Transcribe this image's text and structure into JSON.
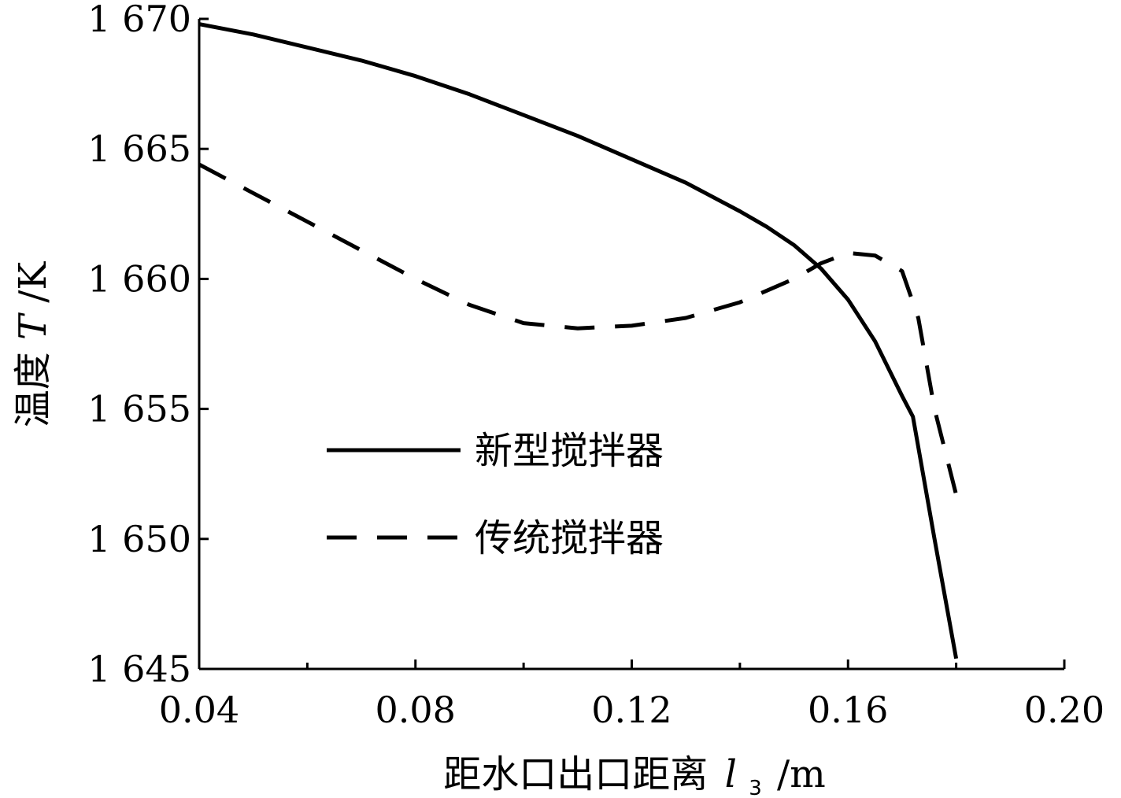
{
  "chart_data": {
    "type": "line",
    "xlabel_prefix": "距水口出口距离",
    "xlabel_var": "l",
    "xlabel_sub": "3",
    "xlabel_unit": "/m",
    "ylabel_prefix": "温度",
    "ylabel_var": "T",
    "ylabel_unit": "/K",
    "xlim": [
      0.04,
      0.2
    ],
    "ylim": [
      1645,
      1670
    ],
    "x_ticks": [
      0.04,
      0.08,
      0.12,
      0.16,
      0.2
    ],
    "x_tick_labels": [
      "0.04",
      "0.08",
      "0.12",
      "0.16",
      "0.20"
    ],
    "y_ticks": [
      1645,
      1650,
      1655,
      1660,
      1665,
      1670
    ],
    "y_tick_labels": [
      "1 645",
      "1 650",
      "1 655",
      "1 660",
      "1 665",
      "1 670"
    ],
    "legend_position": "center-left",
    "grid": false,
    "series": [
      {
        "name": "新型搅拌器",
        "style": "solid",
        "color": "#000000",
        "x": [
          0.04,
          0.05,
          0.06,
          0.07,
          0.08,
          0.09,
          0.1,
          0.11,
          0.12,
          0.13,
          0.14,
          0.145,
          0.15,
          0.155,
          0.16,
          0.165,
          0.17,
          0.172,
          0.176,
          0.18
        ],
        "y": [
          1669.8,
          1669.4,
          1668.9,
          1668.4,
          1667.8,
          1667.1,
          1666.3,
          1665.5,
          1664.6,
          1663.7,
          1662.6,
          1662.0,
          1661.3,
          1660.4,
          1659.2,
          1657.6,
          1655.5,
          1654.7,
          1650.0,
          1645.4
        ]
      },
      {
        "name": "传统搅拌器",
        "style": "dashed",
        "color": "#000000",
        "x": [
          0.04,
          0.05,
          0.06,
          0.07,
          0.08,
          0.09,
          0.1,
          0.11,
          0.12,
          0.13,
          0.14,
          0.15,
          0.155,
          0.16,
          0.165,
          0.17,
          0.173,
          0.176,
          0.18
        ],
        "y": [
          1664.4,
          1663.3,
          1662.2,
          1661.1,
          1660.0,
          1659.0,
          1658.3,
          1658.1,
          1658.2,
          1658.5,
          1659.1,
          1660.0,
          1660.6,
          1661.0,
          1660.9,
          1660.3,
          1658.5,
          1655.0,
          1651.7
        ]
      }
    ]
  }
}
